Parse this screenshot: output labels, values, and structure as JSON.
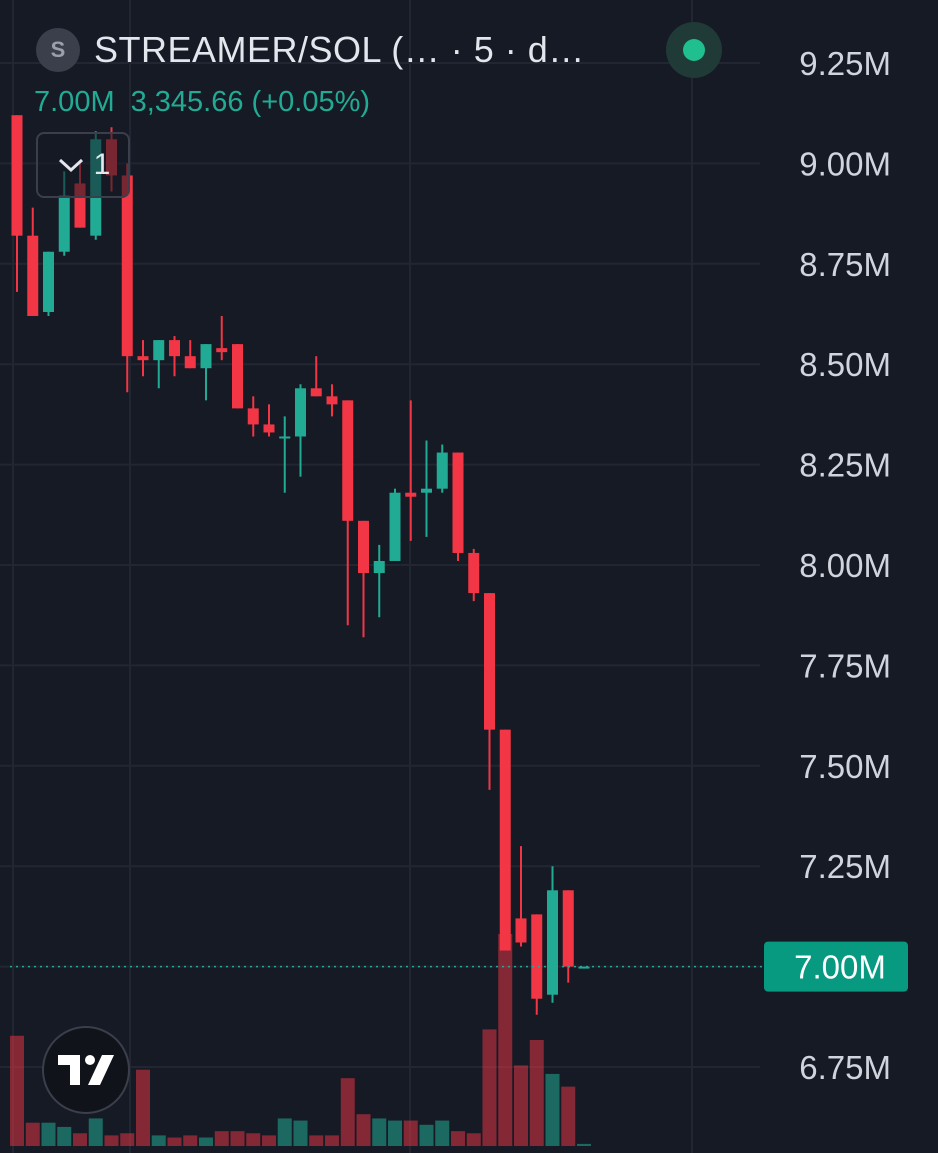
{
  "header": {
    "symbol_badge": "S",
    "title": "STREAMER/SOL (…    · 5 · d…",
    "last_value": "7.00M",
    "change": "3,345.66 (+0.05%)",
    "indicator_count": "1"
  },
  "icons": {
    "live": "live-status-dot-icon",
    "collapse": "chevron-down-icon",
    "logo": "tradingview-logo-icon"
  },
  "colors": {
    "background": "#161a25",
    "up": "#22ab94",
    "down": "#f23645",
    "grid": "#222632",
    "axis_text": "#d1d4dc",
    "price_tag": "#089981"
  },
  "price_axis": {
    "labels": [
      "9.25M",
      "9.00M",
      "8.75M",
      "8.50M",
      "8.25M",
      "8.00M",
      "7.75M",
      "7.50M",
      "7.25M",
      "6.75M"
    ],
    "current_label": "7.00M"
  },
  "chart_data": {
    "type": "candlestick",
    "unit": "M",
    "interval": "5",
    "ylim": [
      6.56,
      9.36
    ],
    "grid": true,
    "last_price": 7.0,
    "candles": [
      {
        "open": 9.12,
        "high": 9.12,
        "low": 8.68,
        "close": 8.82
      },
      {
        "open": 8.82,
        "high": 8.89,
        "low": 8.62,
        "close": 8.62
      },
      {
        "open": 8.63,
        "high": 8.78,
        "low": 8.62,
        "close": 8.78
      },
      {
        "open": 8.78,
        "high": 8.98,
        "low": 8.77,
        "close": 8.92
      },
      {
        "open": 8.95,
        "high": 9.0,
        "low": 8.84,
        "close": 8.84
      },
      {
        "open": 8.82,
        "high": 9.08,
        "low": 8.81,
        "close": 9.06
      },
      {
        "open": 9.06,
        "high": 9.09,
        "low": 8.93,
        "close": 8.97
      },
      {
        "open": 8.97,
        "high": 9.0,
        "low": 8.43,
        "close": 8.52
      },
      {
        "open": 8.52,
        "high": 8.56,
        "low": 8.47,
        "close": 8.51
      },
      {
        "open": 8.51,
        "high": 8.56,
        "low": 8.44,
        "close": 8.56
      },
      {
        "open": 8.56,
        "high": 8.57,
        "low": 8.47,
        "close": 8.52
      },
      {
        "open": 8.52,
        "high": 8.56,
        "low": 8.49,
        "close": 8.49
      },
      {
        "open": 8.49,
        "high": 8.55,
        "low": 8.41,
        "close": 8.55
      },
      {
        "open": 8.54,
        "high": 8.62,
        "low": 8.51,
        "close": 8.53
      },
      {
        "open": 8.55,
        "high": 8.55,
        "low": 8.39,
        "close": 8.39
      },
      {
        "open": 8.39,
        "high": 8.42,
        "low": 8.32,
        "close": 8.35
      },
      {
        "open": 8.35,
        "high": 8.4,
        "low": 8.32,
        "close": 8.33
      },
      {
        "open": 8.32,
        "high": 8.37,
        "low": 8.18,
        "close": 8.32
      },
      {
        "open": 8.32,
        "high": 8.45,
        "low": 8.22,
        "close": 8.44
      },
      {
        "open": 8.44,
        "high": 8.52,
        "low": 8.42,
        "close": 8.42
      },
      {
        "open": 8.42,
        "high": 8.45,
        "low": 8.37,
        "close": 8.4
      },
      {
        "open": 8.41,
        "high": 8.41,
        "low": 7.85,
        "close": 8.11
      },
      {
        "open": 8.11,
        "high": 8.11,
        "low": 7.82,
        "close": 7.98
      },
      {
        "open": 7.98,
        "high": 8.05,
        "low": 7.87,
        "close": 8.01
      },
      {
        "open": 8.01,
        "high": 8.19,
        "low": 8.01,
        "close": 8.18
      },
      {
        "open": 8.18,
        "high": 8.41,
        "low": 8.06,
        "close": 8.17
      },
      {
        "open": 8.18,
        "high": 8.31,
        "low": 8.07,
        "close": 8.19
      },
      {
        "open": 8.19,
        "high": 8.3,
        "low": 8.18,
        "close": 8.28
      },
      {
        "open": 8.28,
        "high": 8.28,
        "low": 8.01,
        "close": 8.03
      },
      {
        "open": 8.03,
        "high": 8.04,
        "low": 7.91,
        "close": 7.93
      },
      {
        "open": 7.93,
        "high": 7.93,
        "low": 7.44,
        "close": 7.59
      },
      {
        "open": 7.59,
        "high": 7.59,
        "low": 7.04,
        "close": 7.04
      },
      {
        "open": 7.12,
        "high": 7.3,
        "low": 7.05,
        "close": 7.06
      },
      {
        "open": 7.13,
        "high": 7.13,
        "low": 6.88,
        "close": 6.92
      },
      {
        "open": 6.93,
        "high": 7.25,
        "low": 6.91,
        "close": 7.19
      },
      {
        "open": 7.19,
        "high": 7.19,
        "low": 6.96,
        "close": 7.0
      },
      {
        "open": 7.0,
        "high": 7.0,
        "low": 7.0,
        "close": 7.0
      }
    ],
    "volume": [
      0.52,
      0.11,
      0.11,
      0.09,
      0.06,
      0.13,
      0.05,
      0.06,
      0.36,
      0.05,
      0.04,
      0.05,
      0.04,
      0.07,
      0.07,
      0.06,
      0.05,
      0.13,
      0.12,
      0.05,
      0.05,
      0.32,
      0.15,
      0.13,
      0.12,
      0.12,
      0.1,
      0.12,
      0.07,
      0.06,
      0.55,
      1.0,
      0.38,
      0.5,
      0.34,
      0.28,
      0.01
    ]
  }
}
